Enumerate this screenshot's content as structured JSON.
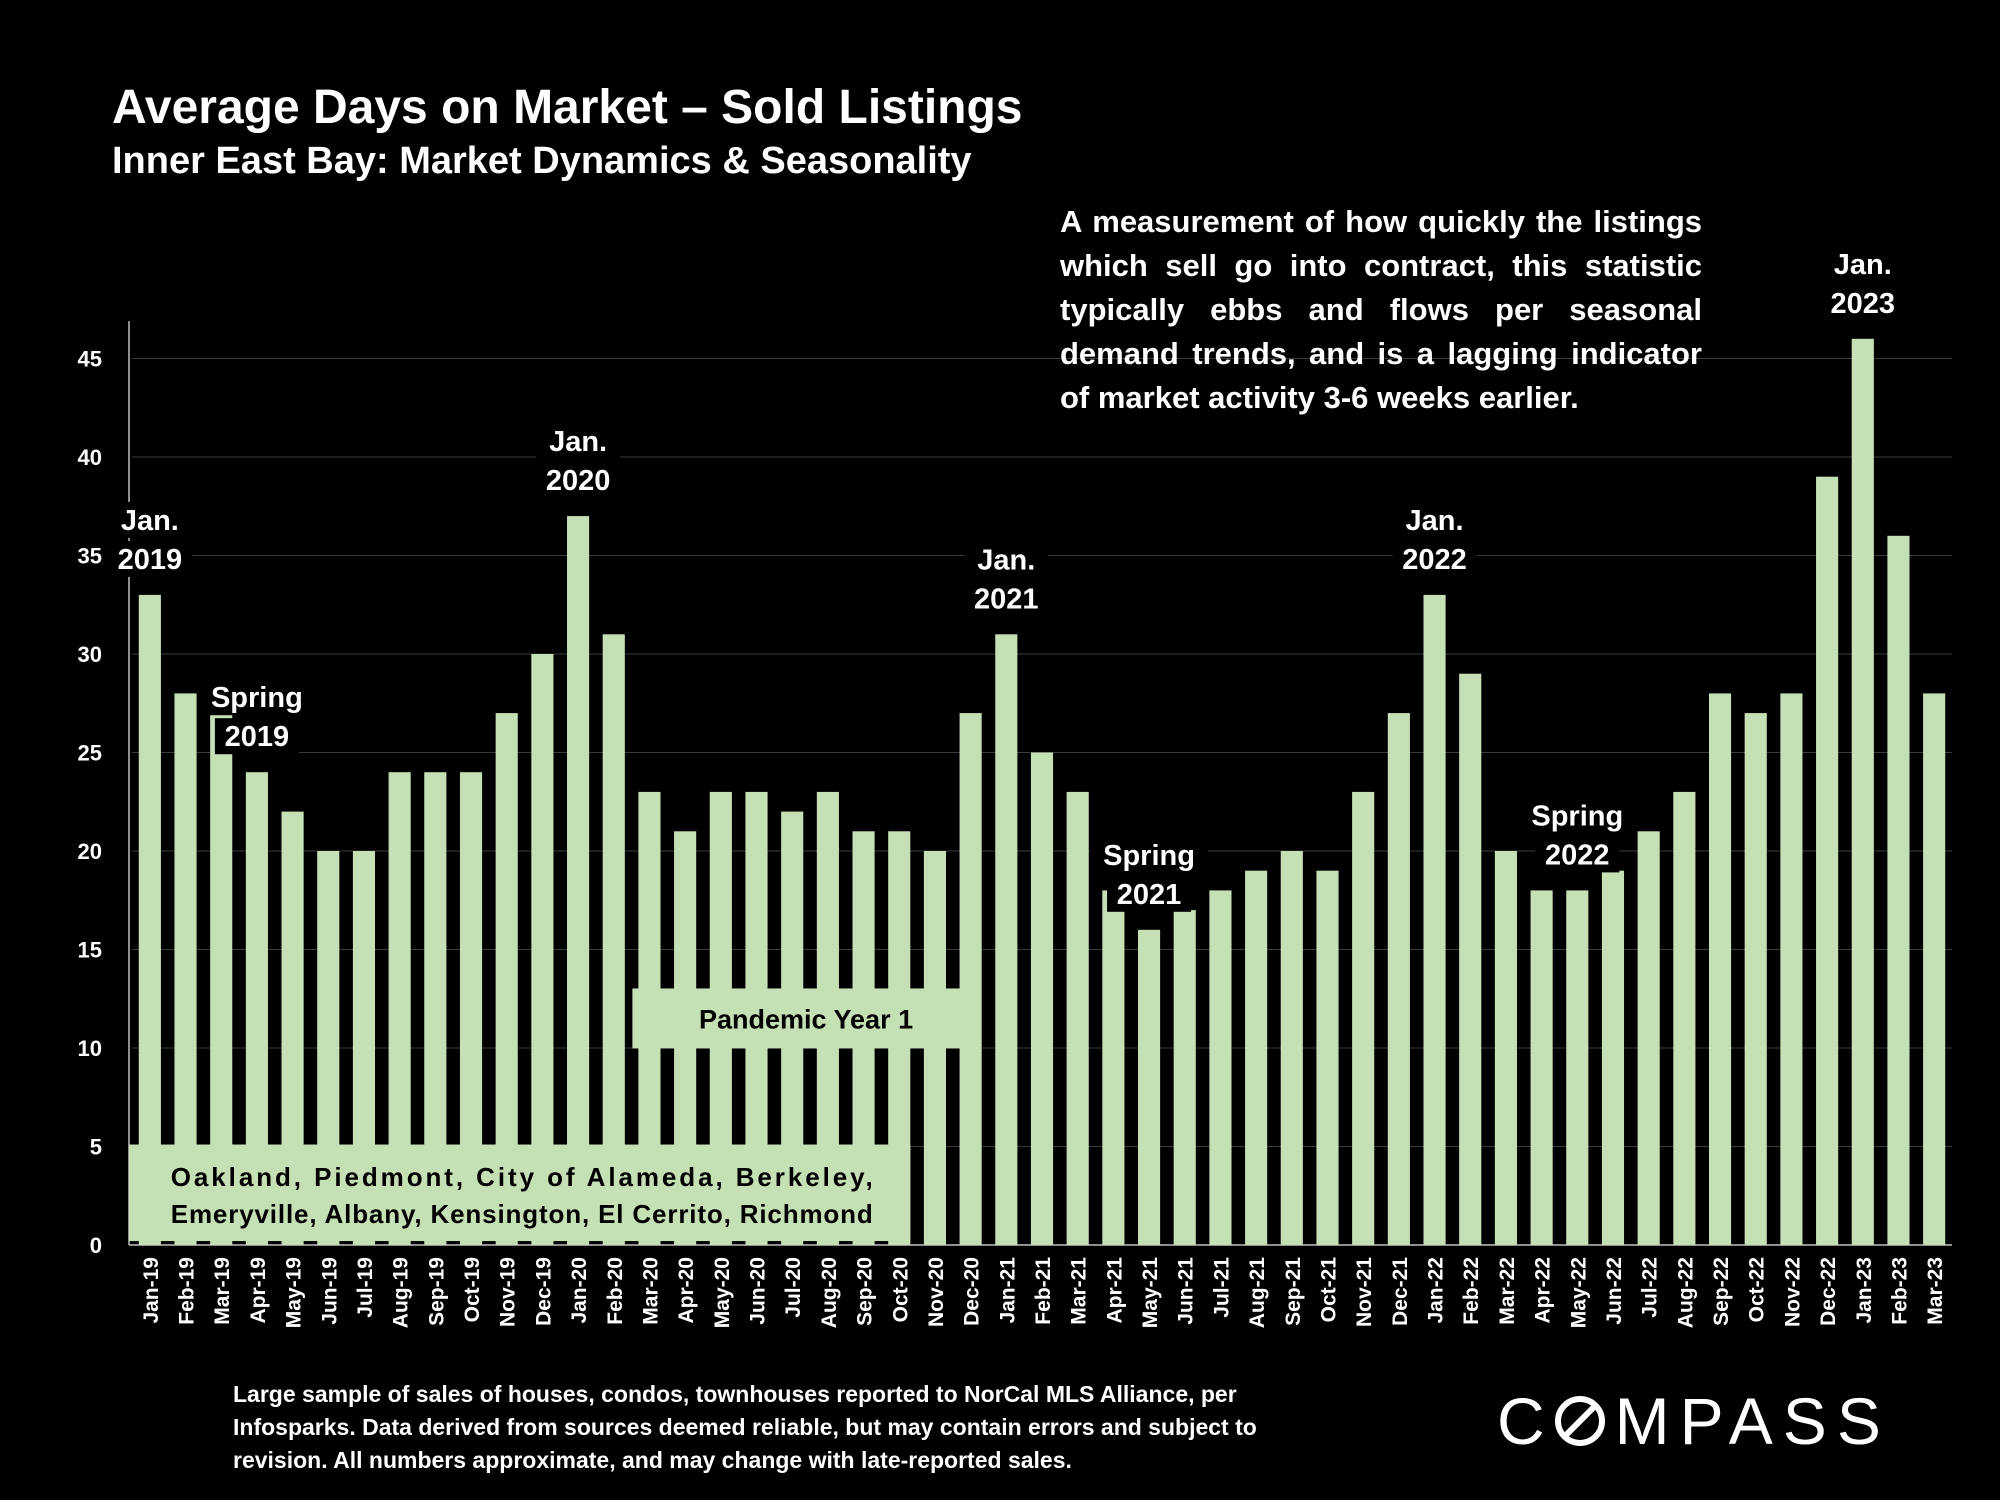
{
  "header": {
    "title": "Average Days on Market – Sold Listings",
    "subtitle": "Inner East Bay: Market Dynamics & Seasonality"
  },
  "description": "A measurement of how quickly the listings which sell go into contract, this statistic typically ebbs and flows per seasonal demand trends, and is a lagging indicator of market activity 3-6 weeks earlier.",
  "footnote": "Large sample of sales of houses, condos, townhouses reported to NorCal MLS Alliance, per Infosparks. Data derived from sources deemed reliable, but may contain errors and subject to revision. All numbers approximate, and may change with late-reported sales.",
  "logo": {
    "prefix": "C",
    "suffix": "MPASS",
    "text": "COMPASS"
  },
  "colors": {
    "background": "#000000",
    "bar": "#c5e0b4",
    "text": "#ffffff",
    "gridline": "#3a3a3a"
  },
  "chart_data": {
    "type": "bar",
    "title": "Average Days on Market – Sold Listings",
    "subtitle": "Inner East Bay: Market Dynamics & Seasonality",
    "xlabel": "",
    "ylabel": "",
    "ylim": [
      0,
      47
    ],
    "yticks": [
      0,
      5,
      10,
      15,
      20,
      25,
      30,
      35,
      40,
      45
    ],
    "grid": true,
    "categories": [
      "Jan-19",
      "Feb-19",
      "Mar-19",
      "Apr-19",
      "May-19",
      "Jun-19",
      "Jul-19",
      "Aug-19",
      "Sep-19",
      "Oct-19",
      "Nov-19",
      "Dec-19",
      "Jan-20",
      "Feb-20",
      "Mar-20",
      "Apr-20",
      "May-20",
      "Jun-20",
      "Jul-20",
      "Aug-20",
      "Sep-20",
      "Oct-20",
      "Nov-20",
      "Dec-20",
      "Jan-21",
      "Feb-21",
      "Mar-21",
      "Apr-21",
      "May-21",
      "Jun-21",
      "Jul-21",
      "Aug-21",
      "Sep-21",
      "Oct-21",
      "Nov-21",
      "Dec-21",
      "Jan-22",
      "Feb-22",
      "Mar-22",
      "Apr-22",
      "May-22",
      "Jun-22",
      "Jul-22",
      "Aug-22",
      "Sep-22",
      "Oct-22",
      "Nov-22",
      "Dec-22",
      "Jan-23",
      "Feb-23",
      "Mar-23"
    ],
    "values": [
      33,
      28,
      28,
      24,
      22,
      20,
      20,
      24,
      24,
      24,
      27,
      30,
      37,
      31,
      23,
      21,
      23,
      23,
      22,
      23,
      21,
      21,
      20,
      27,
      31,
      25,
      23,
      18,
      16,
      17,
      18,
      19,
      20,
      19,
      23,
      27,
      33,
      29,
      20,
      18,
      18,
      19,
      21,
      23,
      28,
      27,
      28,
      39,
      46,
      36,
      28
    ],
    "annotations": [
      {
        "lines": [
          "Jan.",
          "2019"
        ],
        "category": "Jan-19"
      },
      {
        "lines": [
          "Spring",
          "2019"
        ],
        "category": "Apr-19"
      },
      {
        "lines": [
          "Jan.",
          "2020"
        ],
        "category": "Jan-20"
      },
      {
        "lines": [
          "Jan.",
          "2021"
        ],
        "category": "Jan-21"
      },
      {
        "lines": [
          "Spring",
          "2021"
        ],
        "category": "May-21"
      },
      {
        "lines": [
          "Jan.",
          "2022"
        ],
        "category": "Jan-22"
      },
      {
        "lines": [
          "Spring",
          "2022"
        ],
        "category": "May-22"
      },
      {
        "lines": [
          "Jan.",
          "2023"
        ],
        "category": "Jan-23"
      }
    ],
    "label_boxes": [
      {
        "text": "Pandemic Year 1",
        "from": "Mar-20",
        "to": "Dec-20",
        "level": 11.5
      },
      {
        "lines": [
          "Oakland, Piedmont, City of Alameda, Berkeley,",
          "Emeryville, Albany, Kensington, El Cerrito, Richmond"
        ],
        "from": "Jan-19",
        "to": "Oct-20",
        "level": 2.8
      }
    ]
  }
}
